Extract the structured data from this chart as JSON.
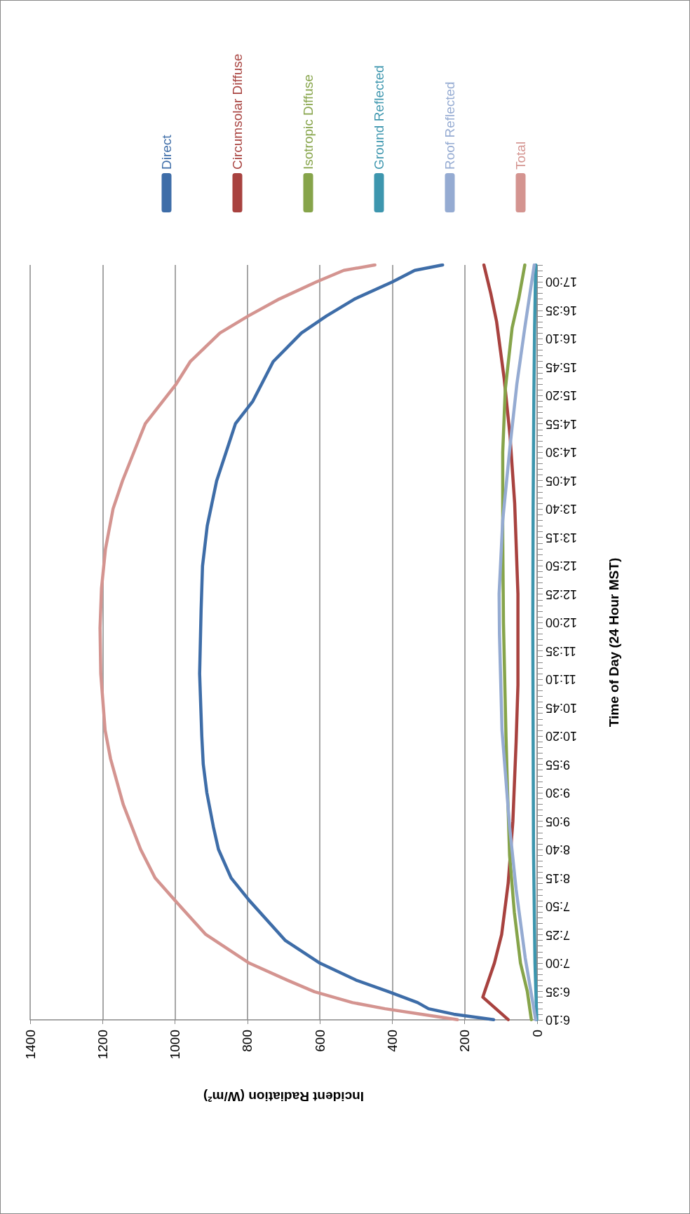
{
  "chart_data": {
    "type": "line",
    "xlabel": "Incident Radiation (W/m²)",
    "ylabel": "Time of Day (24 Hour MST)",
    "xlim": [
      1400,
      0
    ],
    "xticks": [
      0,
      200,
      400,
      600,
      800,
      1000,
      1200,
      1400
    ],
    "ylim": [
      6.1667,
      17.25
    ],
    "yticks": [
      {
        "value": 6.1667,
        "label": "6:10"
      },
      {
        "value": 6.25,
        "label": null
      },
      {
        "value": 6.3333,
        "label": null
      },
      {
        "value": 6.4167,
        "label": null
      },
      {
        "value": 6.5,
        "label": null
      },
      {
        "value": 6.5833,
        "label": "6:35"
      },
      {
        "value": 6.6667,
        "label": null
      },
      {
        "value": 6.75,
        "label": null
      },
      {
        "value": 6.8333,
        "label": null
      },
      {
        "value": 6.9167,
        "label": null
      },
      {
        "value": 7,
        "label": "7:00"
      },
      {
        "value": 7.0833,
        "label": null
      },
      {
        "value": 7.1667,
        "label": null
      },
      {
        "value": 7.25,
        "label": null
      },
      {
        "value": 7.3333,
        "label": null
      },
      {
        "value": 7.4167,
        "label": "7:25"
      },
      {
        "value": 7.5,
        "label": null
      },
      {
        "value": 7.5833,
        "label": null
      },
      {
        "value": 7.6667,
        "label": null
      },
      {
        "value": 7.75,
        "label": null
      },
      {
        "value": 7.8333,
        "label": "7:50"
      },
      {
        "value": 7.9167,
        "label": null
      },
      {
        "value": 8,
        "label": null
      },
      {
        "value": 8.0833,
        "label": null
      },
      {
        "value": 8.1667,
        "label": null
      },
      {
        "value": 8.25,
        "label": "8:15"
      },
      {
        "value": 8.3333,
        "label": null
      },
      {
        "value": 8.4167,
        "label": null
      },
      {
        "value": 8.5,
        "label": null
      },
      {
        "value": 8.5833,
        "label": null
      },
      {
        "value": 8.6667,
        "label": "8:40"
      },
      {
        "value": 8.75,
        "label": null
      },
      {
        "value": 8.8333,
        "label": null
      },
      {
        "value": 8.9167,
        "label": null
      },
      {
        "value": 9,
        "label": null
      },
      {
        "value": 9.0833,
        "label": "9:05"
      },
      {
        "value": 9.1667,
        "label": null
      },
      {
        "value": 9.25,
        "label": null
      },
      {
        "value": 9.3333,
        "label": null
      },
      {
        "value": 9.4167,
        "label": null
      },
      {
        "value": 9.5,
        "label": "9:30"
      },
      {
        "value": 9.5833,
        "label": null
      },
      {
        "value": 9.6667,
        "label": null
      },
      {
        "value": 9.75,
        "label": null
      },
      {
        "value": 9.8333,
        "label": null
      },
      {
        "value": 9.9167,
        "label": "9:55"
      },
      {
        "value": 10,
        "label": null
      },
      {
        "value": 10.0833,
        "label": null
      },
      {
        "value": 10.1667,
        "label": null
      },
      {
        "value": 10.25,
        "label": null
      },
      {
        "value": 10.3333,
        "label": "10:20"
      },
      {
        "value": 10.4167,
        "label": null
      },
      {
        "value": 10.5,
        "label": null
      },
      {
        "value": 10.5833,
        "label": null
      },
      {
        "value": 10.6667,
        "label": null
      },
      {
        "value": 10.75,
        "label": "10:45"
      },
      {
        "value": 10.8333,
        "label": null
      },
      {
        "value": 10.9167,
        "label": null
      },
      {
        "value": 11,
        "label": null
      },
      {
        "value": 11.0833,
        "label": null
      },
      {
        "value": 11.1667,
        "label": "11:10"
      },
      {
        "value": 11.25,
        "label": null
      },
      {
        "value": 11.3333,
        "label": null
      },
      {
        "value": 11.4167,
        "label": null
      },
      {
        "value": 11.5,
        "label": null
      },
      {
        "value": 11.5833,
        "label": "11:35"
      },
      {
        "value": 11.6667,
        "label": null
      },
      {
        "value": 11.75,
        "label": null
      },
      {
        "value": 11.8333,
        "label": null
      },
      {
        "value": 11.9167,
        "label": null
      },
      {
        "value": 12,
        "label": "12:00"
      },
      {
        "value": 12.0833,
        "label": null
      },
      {
        "value": 12.1667,
        "label": null
      },
      {
        "value": 12.25,
        "label": null
      },
      {
        "value": 12.3333,
        "label": null
      },
      {
        "value": 12.4167,
        "label": "12:25"
      },
      {
        "value": 12.5,
        "label": null
      },
      {
        "value": 12.5833,
        "label": null
      },
      {
        "value": 12.6667,
        "label": null
      },
      {
        "value": 12.75,
        "label": null
      },
      {
        "value": 12.8333,
        "label": "12:50"
      },
      {
        "value": 12.9167,
        "label": null
      },
      {
        "value": 13,
        "label": null
      },
      {
        "value": 13.0833,
        "label": null
      },
      {
        "value": 13.1667,
        "label": null
      },
      {
        "value": 13.25,
        "label": "13:15"
      },
      {
        "value": 13.3333,
        "label": null
      },
      {
        "value": 13.4167,
        "label": null
      },
      {
        "value": 13.5,
        "label": null
      },
      {
        "value": 13.5833,
        "label": null
      },
      {
        "value": 13.6667,
        "label": "13:40"
      },
      {
        "value": 13.75,
        "label": null
      },
      {
        "value": 13.8333,
        "label": null
      },
      {
        "value": 13.9167,
        "label": null
      },
      {
        "value": 14,
        "label": null
      },
      {
        "value": 14.0833,
        "label": "14:05"
      },
      {
        "value": 14.1667,
        "label": null
      },
      {
        "value": 14.25,
        "label": null
      },
      {
        "value": 14.3333,
        "label": null
      },
      {
        "value": 14.4167,
        "label": null
      },
      {
        "value": 14.5,
        "label": "14:30"
      },
      {
        "value": 14.5833,
        "label": null
      },
      {
        "value": 14.6667,
        "label": null
      },
      {
        "value": 14.75,
        "label": null
      },
      {
        "value": 14.8333,
        "label": null
      },
      {
        "value": 14.9167,
        "label": "14:55"
      },
      {
        "value": 15,
        "label": null
      },
      {
        "value": 15.0833,
        "label": null
      },
      {
        "value": 15.1667,
        "label": null
      },
      {
        "value": 15.25,
        "label": null
      },
      {
        "value": 15.3333,
        "label": "15:20"
      },
      {
        "value": 15.4167,
        "label": null
      },
      {
        "value": 15.5,
        "label": null
      },
      {
        "value": 15.5833,
        "label": null
      },
      {
        "value": 15.6667,
        "label": null
      },
      {
        "value": 15.75,
        "label": "15:45"
      },
      {
        "value": 15.8333,
        "label": null
      },
      {
        "value": 15.9167,
        "label": null
      },
      {
        "value": 16,
        "label": null
      },
      {
        "value": 16.0833,
        "label": null
      },
      {
        "value": 16.1667,
        "label": "16:10"
      },
      {
        "value": 16.25,
        "label": null
      },
      {
        "value": 16.3333,
        "label": null
      },
      {
        "value": 16.4167,
        "label": null
      },
      {
        "value": 16.5,
        "label": null
      },
      {
        "value": 16.5833,
        "label": "16:35"
      },
      {
        "value": 16.6667,
        "label": null
      },
      {
        "value": 16.75,
        "label": null
      },
      {
        "value": 16.8333,
        "label": null
      },
      {
        "value": 16.9167,
        "label": null
      },
      {
        "value": 17,
        "label": "17:00"
      },
      {
        "value": 17.0833,
        "label": null
      },
      {
        "value": 17.1667,
        "label": null
      },
      {
        "value": 17.25,
        "label": null
      }
    ],
    "grid": "x",
    "legend": "top",
    "marker": "none",
    "line_style": "solid",
    "series": [
      {
        "name": "Direct",
        "color": "#3e6da8",
        "values": [
          6.17,
          6.25,
          6.33,
          6.42,
          6.5,
          6.58,
          6.75,
          7,
          7.33,
          7.92,
          8.25,
          8.67,
          9,
          9.5,
          9.92,
          10.33,
          11.25,
          12.17,
          12.83,
          13.42,
          14.08,
          14.5,
          14.92,
          15.25,
          15.83,
          16.25,
          16.5,
          16.75,
          17,
          17.17,
          17.25
        ],
        "x": [
          120,
          230,
          300,
          330,
          370,
          410,
          500,
          600,
          695,
          795,
          845,
          880,
          894,
          912,
          922,
          926,
          932,
          928,
          924,
          911,
          885,
          859,
          833,
          785,
          729,
          651,
          582,
          504,
          400,
          338,
          261
        ]
      },
      {
        "name": "Circumsolar Diffuse",
        "color": "#a8423f",
        "values": [
          6.17,
          6.5,
          6.58,
          7,
          7.42,
          8.17,
          9.08,
          10.25,
          11.08,
          12.42,
          13.75,
          14.75,
          15.58,
          16.42,
          16.83,
          17.25
        ],
        "x": [
          80,
          150,
          145,
          118,
          98,
          80,
          67,
          58,
          53,
          53,
          62,
          75,
          91,
          112,
          128,
          147
        ]
      },
      {
        "name": "Isotropic Diffuse",
        "color": "#86a44a",
        "values": [
          6.17,
          6.58,
          7,
          7.75,
          8.58,
          9.58,
          10.33,
          12,
          13.25,
          14.5,
          15.42,
          16.33,
          16.75,
          17.25
        ],
        "x": [
          16,
          27,
          46,
          63,
          76,
          82,
          86,
          93,
          95,
          95,
          88,
          69,
          51,
          34
        ]
      },
      {
        "name": "Ground Reflected",
        "color": "#3d96ae",
        "values": [
          6.17,
          7,
          8.67,
          10.33,
          12,
          13.67,
          15.33,
          16.33,
          17.25
        ],
        "x": [
          1,
          6,
          10,
          11,
          12,
          11,
          9,
          7,
          4
        ]
      },
      {
        "name": "Roof Reflected",
        "color": "#95abd2",
        "values": [
          6.17,
          7.08,
          8.08,
          9,
          10.42,
          11.83,
          12.42,
          13.5,
          14.58,
          15.5,
          16.33,
          17.25
        ],
        "x": [
          4,
          33,
          58,
          76,
          97,
          104,
          105,
          95,
          75,
          56,
          34,
          8
        ]
      },
      {
        "name": "Total",
        "color": "#d49490",
        "values": [
          6.17,
          6.25,
          6.33,
          6.42,
          6.58,
          6.75,
          7,
          7.42,
          7.92,
          8.25,
          8.67,
          9.33,
          10,
          10.42,
          11.25,
          11.92,
          12.5,
          13.08,
          13.67,
          14.08,
          14.67,
          14.92,
          15.5,
          15.83,
          16.25,
          16.5,
          16.75,
          17,
          17.17,
          17.25
        ],
        "x": [
          220,
          320,
          420,
          510,
          615,
          690,
          795,
          915,
          1000,
          1055,
          1095,
          1143,
          1178,
          1193,
          1205,
          1207,
          1203,
          1192,
          1171,
          1145,
          1101,
          1082,
          997,
          958,
          876,
          798,
          712,
          610,
          534,
          448
        ]
      }
    ]
  }
}
